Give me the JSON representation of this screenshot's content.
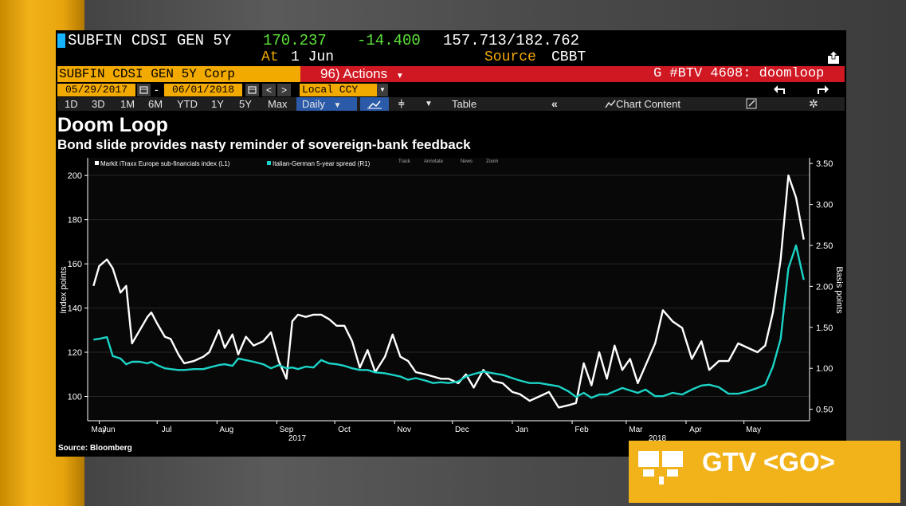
{
  "ticker": {
    "name": "SUBFIN CDSI GEN 5Y",
    "price": "170.237",
    "change": "-14.400",
    "range": "157.713/182.762",
    "at_label": "At",
    "at_date": "1 Jun",
    "source_label": "Source",
    "source_value": "CBBT"
  },
  "toolbar": {
    "security": "SUBFIN CDSI GEN 5Y Corp",
    "actions": "96) Actions",
    "function_code": "G #BTV 4608: doomloop",
    "start_date": "05/29/2017",
    "dash": "-",
    "end_date": "06/01/2018",
    "currency": "Local CCY",
    "periods": [
      "1D",
      "3D",
      "1M",
      "6M",
      "YTD",
      "1Y",
      "5Y",
      "Max"
    ],
    "frequency": "Daily",
    "table_label": "Table",
    "chart_content_label": "Chart Content"
  },
  "icons": {
    "calendar": "calendar-icon",
    "prev": "chevron-left-icon",
    "next": "chevron-right-icon",
    "undo": "undo-arrow-icon",
    "redo": "redo-arrow-icon",
    "export": "export-icon",
    "rewind": "double-chevron-left-icon",
    "settings": "gear-icon",
    "edit": "pencil-icon",
    "chart_type": "line-chart-icon"
  },
  "colors": {
    "amber": "#f2a900",
    "ticker_green": "#5de33a",
    "red_bar": "#d01822",
    "teal_series": "#1bd3c6",
    "white_series": "#ffffff",
    "blue_btn": "#2b5aa8"
  },
  "chart_data": {
    "type": "line",
    "title": "Doom Loop",
    "subtitle": "Bond slide provides nasty reminder of sovereign-bank feedback",
    "ylabel": "Index points",
    "y2label": "Basis points",
    "ylim": [
      89,
      208
    ],
    "y2lim": [
      0.36,
      3.57
    ],
    "yticks": [
      100,
      120,
      140,
      160,
      180,
      200
    ],
    "y2ticks": [
      "0.50",
      "1.00",
      "1.50",
      "2.00",
      "2.50",
      "3.00",
      "3.50"
    ],
    "xticks": [
      "May",
      "Jun",
      "Jul",
      "Aug",
      "Sep",
      "Oct",
      "Nov",
      "Dec",
      "Jan",
      "Feb",
      "Mar",
      "Apr",
      "May"
    ],
    "year_labels": [
      "2017",
      "2018"
    ],
    "legend_controls": [
      "Track",
      "Annotate",
      "News",
      "Zoom"
    ],
    "grid": true,
    "legend_position": "top-left",
    "series": [
      {
        "name": "Markit iTraxx Europe sub-financials index (L1)",
        "axis": "left",
        "color": "#ffffff",
        "x": [
          "2017-05-29",
          "2017-06-01",
          "2017-06-05",
          "2017-06-08",
          "2017-06-12",
          "2017-06-15",
          "2017-06-18",
          "2017-06-22",
          "2017-06-26",
          "2017-06-28",
          "2017-07-01",
          "2017-07-05",
          "2017-07-08",
          "2017-07-12",
          "2017-07-15",
          "2017-07-20",
          "2017-07-25",
          "2017-07-28",
          "2017-08-02",
          "2017-08-05",
          "2017-08-09",
          "2017-08-12",
          "2017-08-16",
          "2017-08-20",
          "2017-08-25",
          "2017-08-29",
          "2017-09-02",
          "2017-09-06",
          "2017-09-09",
          "2017-09-12",
          "2017-09-16",
          "2017-09-20",
          "2017-09-24",
          "2017-09-28",
          "2017-10-02",
          "2017-10-06",
          "2017-10-10",
          "2017-10-14",
          "2017-10-18",
          "2017-10-22",
          "2017-10-27",
          "2017-10-31",
          "2017-11-04",
          "2017-11-08",
          "2017-11-12",
          "2017-11-17",
          "2017-11-21",
          "2017-11-25",
          "2017-11-29",
          "2017-12-04",
          "2017-12-08",
          "2017-12-12",
          "2017-12-17",
          "2017-12-22",
          "2017-12-27",
          "2018-01-01",
          "2018-01-05",
          "2018-01-10",
          "2018-01-15",
          "2018-01-20",
          "2018-01-25",
          "2018-01-30",
          "2018-02-03",
          "2018-02-07",
          "2018-02-11",
          "2018-02-15",
          "2018-02-19",
          "2018-02-23",
          "2018-02-27",
          "2018-03-03",
          "2018-03-07",
          "2018-03-11",
          "2018-03-16",
          "2018-03-20",
          "2018-03-25",
          "2018-03-30",
          "2018-04-04",
          "2018-04-09",
          "2018-04-13",
          "2018-04-18",
          "2018-04-23",
          "2018-04-28",
          "2018-05-03",
          "2018-05-08",
          "2018-05-12",
          "2018-05-16",
          "2018-05-20",
          "2018-05-24",
          "2018-05-28",
          "2018-06-01"
        ],
        "values": [
          150,
          159,
          162,
          158,
          147,
          150,
          124,
          130,
          136,
          138,
          133,
          127,
          126,
          119,
          115,
          116,
          118,
          120,
          130,
          122,
          128,
          119,
          127,
          123,
          125,
          129,
          116,
          108,
          134,
          137,
          136,
          137,
          137,
          135,
          132,
          132,
          125,
          113,
          121,
          111,
          118,
          128,
          118,
          116,
          111,
          110,
          109,
          108,
          108,
          106,
          110,
          104,
          112,
          107,
          106,
          102,
          101,
          98,
          100,
          102,
          95,
          96,
          97,
          115,
          105,
          120,
          108,
          123,
          112,
          117,
          106,
          114,
          124,
          139,
          134,
          131,
          117,
          125,
          112,
          116,
          116,
          124,
          122,
          120,
          123,
          138,
          162,
          200,
          190,
          171
        ]
      },
      {
        "name": "Italian-German 5-year spread (R1)",
        "axis": "right",
        "color": "#1bd3c6",
        "x": [
          "2017-05-29",
          "2017-06-01",
          "2017-06-05",
          "2017-06-08",
          "2017-06-12",
          "2017-06-15",
          "2017-06-18",
          "2017-06-22",
          "2017-06-26",
          "2017-06-28",
          "2017-07-01",
          "2017-07-05",
          "2017-07-08",
          "2017-07-12",
          "2017-07-15",
          "2017-07-20",
          "2017-07-25",
          "2017-07-28",
          "2017-08-02",
          "2017-08-05",
          "2017-08-09",
          "2017-08-12",
          "2017-08-16",
          "2017-08-20",
          "2017-08-25",
          "2017-08-29",
          "2017-09-02",
          "2017-09-06",
          "2017-09-09",
          "2017-09-12",
          "2017-09-16",
          "2017-09-20",
          "2017-09-24",
          "2017-09-28",
          "2017-10-02",
          "2017-10-06",
          "2017-10-10",
          "2017-10-14",
          "2017-10-18",
          "2017-10-22",
          "2017-10-27",
          "2017-10-31",
          "2017-11-04",
          "2017-11-08",
          "2017-11-12",
          "2017-11-17",
          "2017-11-21",
          "2017-11-25",
          "2017-11-29",
          "2017-12-04",
          "2017-12-08",
          "2017-12-12",
          "2017-12-17",
          "2017-12-22",
          "2017-12-27",
          "2018-01-01",
          "2018-01-05",
          "2018-01-10",
          "2018-01-15",
          "2018-01-20",
          "2018-01-25",
          "2018-01-30",
          "2018-02-03",
          "2018-02-07",
          "2018-02-11",
          "2018-02-15",
          "2018-02-19",
          "2018-02-23",
          "2018-02-27",
          "2018-03-03",
          "2018-03-07",
          "2018-03-11",
          "2018-03-16",
          "2018-03-20",
          "2018-03-25",
          "2018-03-30",
          "2018-04-04",
          "2018-04-09",
          "2018-04-13",
          "2018-04-18",
          "2018-04-23",
          "2018-04-28",
          "2018-05-03",
          "2018-05-08",
          "2018-05-12",
          "2018-05-16",
          "2018-05-20",
          "2018-05-24",
          "2018-05-28",
          "2018-06-01"
        ],
        "values": [
          1.35,
          1.36,
          1.38,
          1.15,
          1.12,
          1.05,
          1.08,
          1.08,
          1.06,
          1.08,
          1.04,
          1.0,
          0.99,
          0.98,
          0.98,
          0.99,
          0.99,
          1.01,
          1.04,
          1.05,
          1.03,
          1.12,
          1.1,
          1.08,
          1.05,
          1.0,
          1.04,
          1.0,
          1.01,
          0.99,
          1.02,
          1.01,
          1.1,
          1.06,
          1.05,
          1.03,
          1.0,
          0.98,
          0.98,
          0.95,
          0.94,
          0.92,
          0.9,
          0.86,
          0.88,
          0.85,
          0.82,
          0.83,
          0.82,
          0.84,
          0.9,
          0.93,
          0.96,
          0.94,
          0.92,
          0.88,
          0.85,
          0.82,
          0.82,
          0.8,
          0.78,
          0.72,
          0.65,
          0.7,
          0.64,
          0.68,
          0.68,
          0.72,
          0.76,
          0.73,
          0.7,
          0.74,
          0.66,
          0.66,
          0.7,
          0.68,
          0.74,
          0.79,
          0.8,
          0.77,
          0.69,
          0.69,
          0.72,
          0.76,
          0.8,
          1.02,
          1.36,
          2.22,
          2.5,
          2.08
        ]
      }
    ]
  },
  "source_note": "Source: Bloomberg",
  "gtv_banner": "GTV <GO>"
}
